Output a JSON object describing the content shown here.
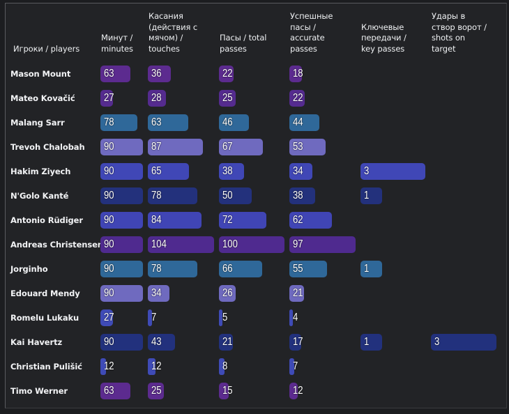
{
  "chart_data": {
    "type": "table",
    "title": "",
    "columns": [
      {
        "key": "player",
        "label": "Игроки / players"
      },
      {
        "key": "minutes",
        "label": "Минут / minutes"
      },
      {
        "key": "touches",
        "label": "Касания (действия с мячом) / touches"
      },
      {
        "key": "passes",
        "label": "Пасы / total passes"
      },
      {
        "key": "accurate",
        "label": "Успешные пасы / accurate passes"
      },
      {
        "key": "key_passes",
        "label": "Ключевые передачи / key passes"
      },
      {
        "key": "shots",
        "label": "Удары в створ ворот / shots on target"
      }
    ],
    "header_lines": {
      "player": [
        "Игроки / players"
      ],
      "minutes": [
        "Минут /",
        "minutes"
      ],
      "touches": [
        "Касания",
        "(действия с",
        "мячом) /",
        "touches"
      ],
      "passes": [
        "Пасы / total",
        "passes"
      ],
      "accurate": [
        "Успешные",
        "пасы /",
        "accurate",
        "passes"
      ],
      "key_passes": [
        "Ключевые",
        "передачи /",
        "key passes"
      ],
      "shots": [
        "Удары в",
        "створ ворот /",
        "shots on",
        "target"
      ]
    },
    "rows": [
      {
        "player": "Mason Mount",
        "color": "#5c2b8f",
        "minutes": 63,
        "touches": 36,
        "passes": 22,
        "accurate": 18,
        "key_passes": null,
        "shots": null
      },
      {
        "player": "Mateo Kovačić",
        "color": "#552b8f",
        "minutes": 27,
        "touches": 28,
        "passes": 25,
        "accurate": 22,
        "key_passes": null,
        "shots": null
      },
      {
        "player": "Malang Sarr",
        "color": "#2f6899",
        "minutes": 78,
        "touches": 63,
        "passes": 46,
        "accurate": 44,
        "key_passes": null,
        "shots": null
      },
      {
        "player": "Trevoh Chalobah",
        "color": "#6f6abf",
        "minutes": 90,
        "touches": 87,
        "passes": 67,
        "accurate": 53,
        "key_passes": null,
        "shots": null
      },
      {
        "player": "Hakim Ziyech",
        "color": "#4047b6",
        "minutes": 90,
        "touches": 65,
        "passes": 38,
        "accurate": 34,
        "key_passes": 3,
        "shots": null
      },
      {
        "player": "N'Golo Kanté",
        "color": "#23317c",
        "minutes": 90,
        "touches": 78,
        "passes": 50,
        "accurate": 38,
        "key_passes": 1,
        "shots": null
      },
      {
        "player": "Antonio Rüdiger",
        "color": "#4045b5",
        "minutes": 90,
        "touches": 84,
        "passes": 72,
        "accurate": 62,
        "key_passes": null,
        "shots": null
      },
      {
        "player": "Andreas Christensen",
        "color": "#4f2a8f",
        "minutes": 90,
        "touches": 104,
        "passes": 100,
        "accurate": 97,
        "key_passes": null,
        "shots": null
      },
      {
        "player": "Jorginho",
        "color": "#2f6899",
        "minutes": 90,
        "touches": 78,
        "passes": 66,
        "accurate": 55,
        "key_passes": 1,
        "shots": null
      },
      {
        "player": "Edouard Mendy",
        "color": "#6f6abf",
        "minutes": 90,
        "touches": 34,
        "passes": 26,
        "accurate": 21,
        "key_passes": null,
        "shots": null
      },
      {
        "player": "Romelu Lukaku",
        "color": "#3f4bb7",
        "minutes": 27,
        "touches": 7,
        "passes": 5,
        "accurate": 4,
        "key_passes": null,
        "shots": null
      },
      {
        "player": "Kai Havertz",
        "color": "#22317d",
        "minutes": 90,
        "touches": 43,
        "passes": 21,
        "accurate": 17,
        "key_passes": 1,
        "shots": 3
      },
      {
        "player": "Christian Pulišić",
        "color": "#3f4bb7",
        "minutes": 12,
        "touches": 12,
        "passes": 8,
        "accurate": 7,
        "key_passes": null,
        "shots": null
      },
      {
        "player": "Timo Werner",
        "color": "#5c2b8f",
        "minutes": 63,
        "touches": 25,
        "passes": 15,
        "accurate": 12,
        "key_passes": null,
        "shots": null
      }
    ],
    "column_max": {
      "minutes": 90,
      "touches": 104,
      "passes": 100,
      "accurate": 97,
      "key_passes": 3,
      "shots": 3
    },
    "grid": false,
    "legend": "none"
  }
}
